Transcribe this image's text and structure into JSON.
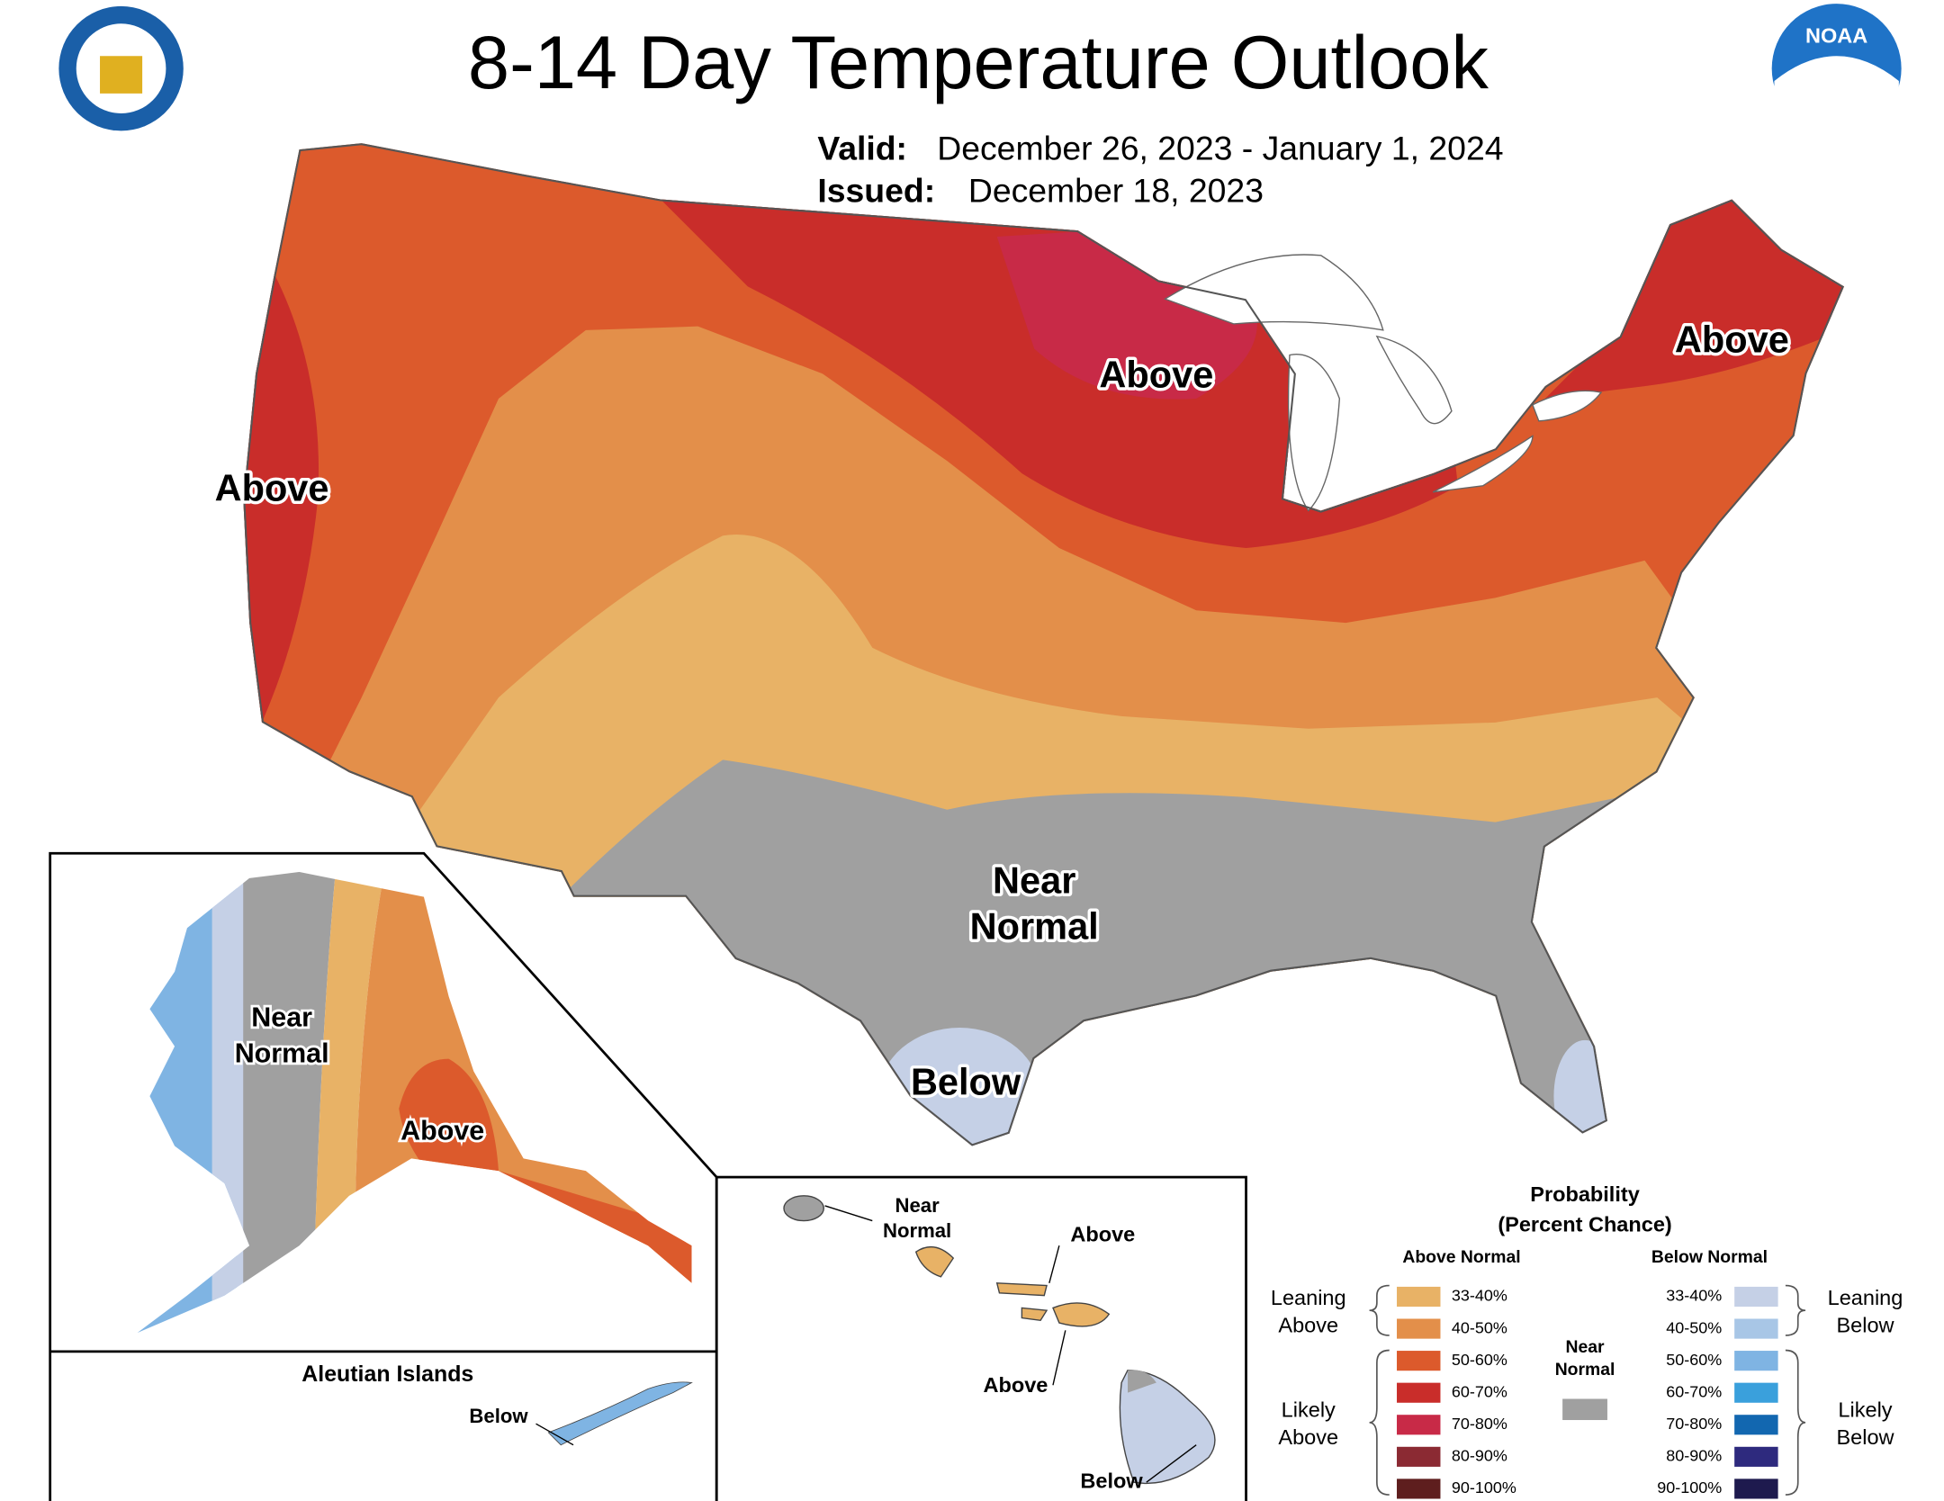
{
  "header": {
    "title": "8-14 Day Temperature Outlook",
    "valid_label": "Valid:",
    "valid": "December 26, 2023 - January 1, 2024",
    "issued_label": "Issued:",
    "issued": "December 18, 2023",
    "logo_text": "NOAA"
  },
  "conus_labels": {
    "west": "Above",
    "north": "Above",
    "northeast": "Above",
    "near": [
      "Near",
      "Normal"
    ],
    "texas": "Below"
  },
  "alaska": {
    "near": [
      "Near",
      "Normal"
    ],
    "above": "Above"
  },
  "aleutians": {
    "title": "Aleutian Islands",
    "below": "Below"
  },
  "hawaii": {
    "near": [
      "Near",
      "Normal"
    ],
    "above_1": "Above",
    "above_2": "Above",
    "below": "Below"
  },
  "legend": {
    "title": "Probability",
    "subtitle": "(Percent Chance)",
    "above_header": "Above Normal",
    "below_header": "Below Normal",
    "above": [
      {
        "range": "33-40%",
        "color": "#e8b266"
      },
      {
        "range": "40-50%",
        "color": "#e38f4a"
      },
      {
        "range": "50-60%",
        "color": "#dc5a2c"
      },
      {
        "range": "60-70%",
        "color": "#c92d2a"
      },
      {
        "range": "70-80%",
        "color": "#c82a47"
      },
      {
        "range": "80-90%",
        "color": "#8b2a33"
      },
      {
        "range": "90-100%",
        "color": "#5e1e1e"
      }
    ],
    "below": [
      {
        "range": "33-40%",
        "color": "#c5d0e6"
      },
      {
        "range": "40-50%",
        "color": "#a8c6e6"
      },
      {
        "range": "50-60%",
        "color": "#7fb4e3"
      },
      {
        "range": "60-70%",
        "color": "#3aa0dc"
      },
      {
        "range": "70-80%",
        "color": "#1267b0"
      },
      {
        "range": "80-90%",
        "color": "#2e2a7e"
      },
      {
        "range": "90-100%",
        "color": "#1e1a4e"
      }
    ],
    "near": {
      "label": [
        "Near",
        "Normal"
      ],
      "color": "#a0a0a0"
    },
    "leaning_above": [
      "Leaning",
      "Above"
    ],
    "likely_above": [
      "Likely",
      "Above"
    ],
    "leaning_below": [
      "Leaning",
      "Below"
    ],
    "likely_below": [
      "Likely",
      "Below"
    ]
  }
}
